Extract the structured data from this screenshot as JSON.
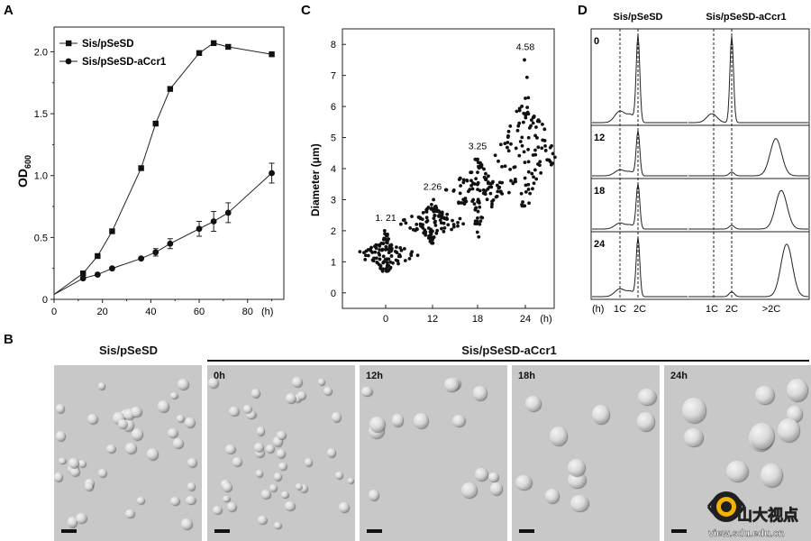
{
  "panels": {
    "a": "A",
    "b": "B",
    "c": "C",
    "d": "D"
  },
  "chart_data": [
    {
      "type": "line",
      "xlabel": "(h)",
      "ylabel_main": "OD",
      "ylabel_sub": "600",
      "xlim": [
        0,
        95
      ],
      "ylim": [
        0,
        2.2
      ],
      "xticks": [
        "0",
        "20",
        "40",
        "60",
        "80"
      ],
      "yticks": [
        "0",
        "0.5",
        "1.0",
        "1.5",
        "2.0"
      ],
      "legend_position": "top-left",
      "series": [
        {
          "name": "Sis/pSeSD",
          "marker": "square",
          "x": [
            0,
            12,
            18,
            24,
            36,
            42,
            48,
            60,
            66,
            72,
            90
          ],
          "y": [
            0.04,
            0.21,
            0.35,
            0.55,
            1.06,
            1.42,
            1.7,
            1.99,
            2.07,
            2.04,
            1.98
          ],
          "err": [
            0,
            0.02,
            0.02,
            0.02,
            0.02,
            0.02,
            0.02,
            0.02,
            0.02,
            0.02,
            0.02
          ]
        },
        {
          "name": "Sis/pSeSD-aCcr1",
          "marker": "circle",
          "x": [
            0,
            12,
            18,
            24,
            36,
            42,
            48,
            60,
            66,
            72,
            90
          ],
          "y": [
            0.04,
            0.17,
            0.2,
            0.25,
            0.33,
            0.38,
            0.45,
            0.57,
            0.63,
            0.7,
            1.02
          ],
          "err": [
            0,
            0.02,
            0.02,
            0.02,
            0.02,
            0.03,
            0.04,
            0.06,
            0.08,
            0.08,
            0.08
          ]
        }
      ]
    },
    {
      "type": "scatter",
      "ylabel": "Diameter (μm)",
      "xlabel": "(h)",
      "ylim": [
        -0.5,
        8.5
      ],
      "yticks": [
        "0",
        "1",
        "2",
        "3",
        "4",
        "5",
        "6",
        "7",
        "8"
      ],
      "categories": [
        "0",
        "12",
        "18",
        "24"
      ],
      "means": [
        1.21,
        2.26,
        3.25,
        4.58
      ],
      "mean_labels": [
        "1. 21",
        "2.26",
        "3.25",
        "4.58"
      ],
      "ranges": [
        [
          0.7,
          2.0
        ],
        [
          1.6,
          3.0
        ],
        [
          1.8,
          4.3
        ],
        [
          2.8,
          7.5
        ]
      ]
    },
    {
      "type": "histogram",
      "columns": [
        "Sis/pSeSD",
        "Sis/pSeSD-aCcr1"
      ],
      "rows": [
        "0",
        "12",
        "18",
        "24"
      ],
      "xlabel": "(h)",
      "axis_marks_left": [
        "1C",
        "2C"
      ],
      "axis_marks_right": [
        "1C",
        "2C",
        ">2C"
      ]
    }
  ],
  "microscopy": {
    "group_label": "Sis/pSeSD-aCcr1",
    "panels": [
      {
        "label": "Sis/pSeSD",
        "timepoint": ""
      },
      {
        "label": "",
        "timepoint": "0h"
      },
      {
        "label": "",
        "timepoint": "12h"
      },
      {
        "label": "",
        "timepoint": "18h"
      },
      {
        "label": "",
        "timepoint": "24h"
      }
    ]
  },
  "watermark": {
    "text": "山大视点",
    "url": "view.sdu.edu.cn"
  }
}
